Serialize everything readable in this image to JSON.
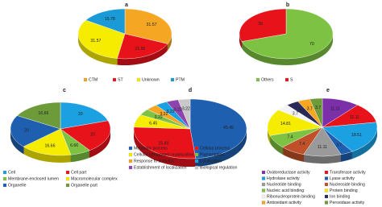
{
  "chart_data": [
    {
      "type": "pie",
      "title": "a",
      "categories": [
        "CTM",
        "ST",
        "Unknown",
        "PTM"
      ],
      "values": [
        31.57,
        21.05,
        31.57,
        15.78
      ],
      "colors": [
        "#f5a623",
        "#e8121b",
        "#f5ec00",
        "#1a9ad6"
      ]
    },
    {
      "type": "pie",
      "title": "b",
      "categories": [
        "Others",
        "S"
      ],
      "values": [
        70,
        30
      ],
      "colors": [
        "#7dc242",
        "#e8121b"
      ]
    },
    {
      "type": "pie",
      "title": "c",
      "categories": [
        "Cell",
        "Cell part",
        "Membrane-enclosed lumen",
        "Macromolecular complex",
        "Organelle",
        "Organelle part"
      ],
      "values": [
        20,
        20,
        6.66,
        16.66,
        20,
        16.66
      ],
      "colors": [
        "#1ba1e2",
        "#e8121b",
        "#7dc242",
        "#f5ec00",
        "#1f5fb0",
        "#6d9b3a"
      ]
    },
    {
      "type": "pie",
      "title": "d",
      "categories": [
        "Metabolic process",
        "Cellular process",
        "Cellular component organization",
        "Pigmentation",
        "Response to stimulus",
        "Localization",
        "Establishment of localization",
        "Biological regulation"
      ],
      "values": [
        45.45,
        25.8,
        6.45,
        3.22,
        3.22,
        3.22,
        3.22,
        3.22
      ],
      "value_labels": [
        "45.45",
        "25.80",
        "6.45",
        "3.22",
        "3.22",
        "3.22",
        "3.22",
        "3.22"
      ],
      "colors": [
        "#1f5fb0",
        "#e8121b",
        "#f5ec00",
        "#7dc242",
        "#f5a623",
        "#1ba1e2",
        "#8e44ad",
        "#c8c8c8"
      ]
    },
    {
      "type": "pie",
      "title": "e",
      "categories": [
        "Oxidoreductase activity",
        "Transferase activity",
        "Hydrolase activity",
        "Lyase activity",
        "Nucleotide binding",
        "Nucleoside binding",
        "Nucleic acid binding",
        "Protein binding",
        "Ribonucleoprotein binding",
        "Ion binding",
        "Antioxidant activity",
        "Peroxidase activity"
      ],
      "values": [
        11.11,
        11.11,
        18.51,
        3.7,
        11.11,
        7.4,
        7.4,
        14.81,
        3.7,
        3.7,
        3.7,
        3.7
      ],
      "colors": [
        "#7b2fa8",
        "#e8121b",
        "#1ba1e2",
        "#1f5fb0",
        "#9a9a9a",
        "#c0502a",
        "#7dc242",
        "#f5ec00",
        "#f4f4f4",
        "#2a2a5a",
        "#f5a623",
        "#6d9b3a"
      ]
    }
  ]
}
